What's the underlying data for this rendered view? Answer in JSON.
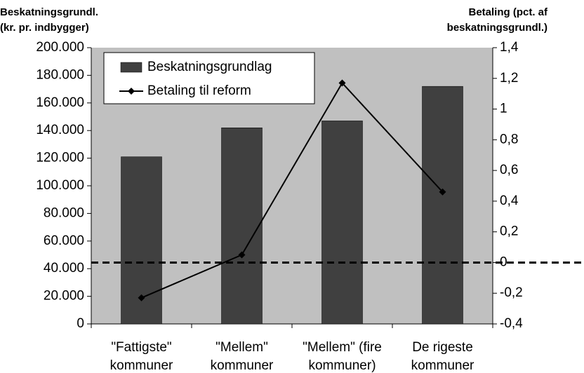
{
  "chart_data": {
    "type": "bar_line",
    "ylabel": [
      "Beskatningsgrundl.",
      "(kr. pr. indbygger)"
    ],
    "y2label": [
      "Betaling (pct. af",
      "beskatningsgrundl.)"
    ],
    "categories": [
      "\"Fattigste\"\nkommuner",
      "\"Mellem\"\nkommuner",
      "\"Mellem\" (fire\nkommuner)",
      "De rigeste\nkommuner"
    ],
    "series": [
      {
        "name": "Beskatningsgrundlag",
        "type": "bar",
        "color": "#404040",
        "values": [
          121000,
          142000,
          147000,
          172000
        ]
      },
      {
        "name": "Betaling til reform",
        "type": "line",
        "axis": "y2",
        "color": "#000000",
        "values": [
          -0.23,
          0.05,
          1.17,
          0.46
        ]
      }
    ],
    "ylim": [
      0,
      200000
    ],
    "yticks": [
      0,
      {
        "value": 20000,
        "label": "20.000"
      },
      {
        "value": 40000,
        "label": "40.000"
      },
      {
        "value": 60000,
        "label": "60.000"
      },
      {
        "value": 80000,
        "label": "80.000"
      },
      {
        "value": 100000,
        "label": "100.000"
      },
      {
        "value": 120000,
        "label": "120.000"
      },
      {
        "value": 140000,
        "label": "140.000"
      },
      {
        "value": 160000,
        "label": "160.000"
      },
      {
        "value": 180000,
        "label": "180.000"
      },
      {
        "value": 200000,
        "label": "200.000"
      }
    ],
    "y2lim": [
      -0.4,
      1.4
    ],
    "y2ticks": [
      {
        "value": -0.4,
        "label": "-0,4"
      },
      {
        "value": -0.2,
        "label": "-0,2"
      },
      0,
      {
        "value": 0.2,
        "label": "0,2"
      },
      {
        "value": 0.4,
        "label": "0,4"
      },
      {
        "value": 0.6,
        "label": "0,6"
      },
      {
        "value": 0.8,
        "label": "0,8"
      },
      1,
      {
        "value": 1.2,
        "label": "1,2"
      },
      {
        "value": 1.4,
        "label": "1,4"
      }
    ],
    "reference_line": {
      "axis": "y2",
      "value": 0
    },
    "plot_background": "#c0c0c0",
    "legend": "upper left"
  }
}
